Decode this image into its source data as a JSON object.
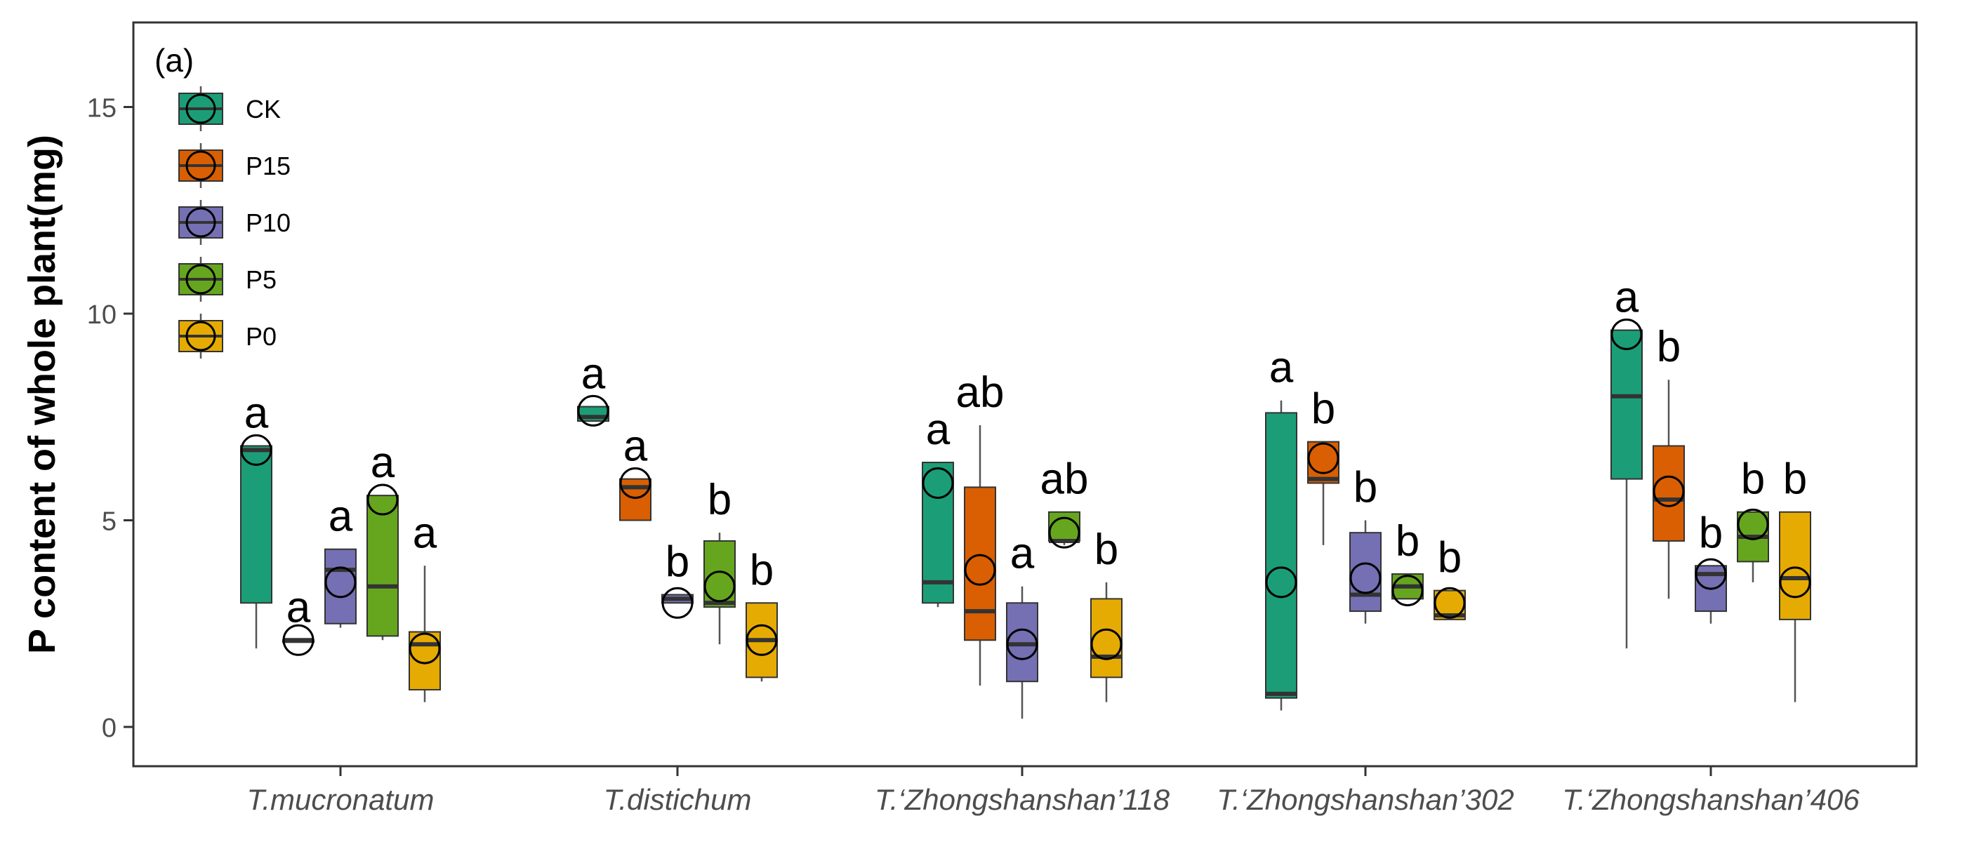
{
  "chart_data": {
    "type": "box",
    "panel_label": "(a)",
    "ylabel": "P content of whole plant(mg)",
    "xlabel": "",
    "ylim": [
      -0.9,
      17.0
    ],
    "yticks": [
      0,
      5,
      10,
      15
    ],
    "grid": false,
    "legend_position": "top-left",
    "categories": [
      "T.mucronatum",
      "T.distichum",
      "T.‘Zhongshanshan’118",
      "T.‘Zhongshanshan’302",
      "T.‘Zhongshanshan’406"
    ],
    "series": [
      {
        "name": "CK",
        "color": "#1b9e77",
        "boxes": [
          {
            "lower_whisker": 1.9,
            "q1": 3.0,
            "median": 6.7,
            "q3": 6.8,
            "upper_whisker": 6.8,
            "mean": 6.7,
            "letter": "a"
          },
          {
            "lower_whisker": 7.4,
            "q1": 7.4,
            "median": 7.5,
            "q3": 7.75,
            "upper_whisker": 7.75,
            "mean": 7.65,
            "letter": "a"
          },
          {
            "lower_whisker": 2.9,
            "q1": 3.0,
            "median": 3.5,
            "q3": 6.4,
            "upper_whisker": 6.4,
            "mean": 5.9,
            "letter": "a"
          },
          {
            "lower_whisker": 0.4,
            "q1": 0.7,
            "median": 0.8,
            "q3": 7.6,
            "upper_whisker": 7.9,
            "mean": 3.5,
            "letter": "a"
          },
          {
            "lower_whisker": 1.9,
            "q1": 6.0,
            "median": 8.0,
            "q3": 9.6,
            "upper_whisker": 9.6,
            "mean": 9.5,
            "letter": "a"
          }
        ]
      },
      {
        "name": "P15",
        "color": "#d95f02",
        "boxes": [
          {
            "lower_whisker": 2.1,
            "q1": 2.1,
            "median": 2.1,
            "q3": 2.1,
            "upper_whisker": 2.1,
            "mean": 2.1,
            "letter": "a"
          },
          {
            "lower_whisker": 5.0,
            "q1": 5.0,
            "median": 5.8,
            "q3": 6.0,
            "upper_whisker": 6.0,
            "mean": 5.9,
            "letter": "a"
          },
          {
            "lower_whisker": 1.0,
            "q1": 2.1,
            "median": 2.8,
            "q3": 5.8,
            "upper_whisker": 7.3,
            "mean": 3.8,
            "letter": "ab"
          },
          {
            "lower_whisker": 4.4,
            "q1": 5.9,
            "median": 6.0,
            "q3": 6.9,
            "upper_whisker": 6.9,
            "mean": 6.5,
            "letter": "b"
          },
          {
            "lower_whisker": 3.1,
            "q1": 4.5,
            "median": 5.5,
            "q3": 6.8,
            "upper_whisker": 8.4,
            "mean": 5.7,
            "letter": "b"
          }
        ]
      },
      {
        "name": "P10",
        "color": "#7570b3",
        "boxes": [
          {
            "lower_whisker": 2.4,
            "q1": 2.5,
            "median": 3.8,
            "q3": 4.3,
            "upper_whisker": 4.3,
            "mean": 3.5,
            "letter": "a"
          },
          {
            "lower_whisker": 3.0,
            "q1": 3.0,
            "median": 3.1,
            "q3": 3.2,
            "upper_whisker": 3.2,
            "mean": 3.0,
            "letter": "b"
          },
          {
            "lower_whisker": 0.2,
            "q1": 1.1,
            "median": 2.0,
            "q3": 3.0,
            "upper_whisker": 3.4,
            "mean": 2.0,
            "letter": "a"
          },
          {
            "lower_whisker": 2.5,
            "q1": 2.8,
            "median": 3.2,
            "q3": 4.7,
            "upper_whisker": 5.0,
            "mean": 3.6,
            "letter": "b"
          },
          {
            "lower_whisker": 2.5,
            "q1": 2.8,
            "median": 3.7,
            "q3": 3.9,
            "upper_whisker": 3.9,
            "mean": 3.7,
            "letter": "b"
          }
        ]
      },
      {
        "name": "P5",
        "color": "#66a61e",
        "boxes": [
          {
            "lower_whisker": 2.1,
            "q1": 2.2,
            "median": 3.4,
            "q3": 5.6,
            "upper_whisker": 5.6,
            "mean": 5.5,
            "letter": "a"
          },
          {
            "lower_whisker": 2.0,
            "q1": 2.9,
            "median": 3.0,
            "q3": 4.5,
            "upper_whisker": 4.7,
            "mean": 3.4,
            "letter": "b"
          },
          {
            "lower_whisker": 4.4,
            "q1": 4.5,
            "median": 4.5,
            "q3": 5.2,
            "upper_whisker": 5.2,
            "mean": 4.7,
            "letter": "ab"
          },
          {
            "lower_whisker": 3.1,
            "q1": 3.1,
            "median": 3.4,
            "q3": 3.7,
            "upper_whisker": 3.7,
            "mean": 3.3,
            "letter": "b"
          },
          {
            "lower_whisker": 3.5,
            "q1": 4.0,
            "median": 4.6,
            "q3": 5.2,
            "upper_whisker": 5.2,
            "mean": 4.9,
            "letter": "b"
          }
        ]
      },
      {
        "name": "P0",
        "color": "#e6ab02",
        "boxes": [
          {
            "lower_whisker": 0.6,
            "q1": 0.9,
            "median": 2.0,
            "q3": 2.3,
            "upper_whisker": 3.9,
            "mean": 1.9,
            "letter": "a"
          },
          {
            "lower_whisker": 1.1,
            "q1": 1.2,
            "median": 2.1,
            "q3": 3.0,
            "upper_whisker": 3.0,
            "mean": 2.1,
            "letter": "b"
          },
          {
            "lower_whisker": 0.6,
            "q1": 1.2,
            "median": 1.7,
            "q3": 3.1,
            "upper_whisker": 3.5,
            "mean": 2.0,
            "letter": "b"
          },
          {
            "lower_whisker": 2.6,
            "q1": 2.6,
            "median": 2.7,
            "q3": 3.3,
            "upper_whisker": 3.3,
            "mean": 3.0,
            "letter": "b"
          },
          {
            "lower_whisker": 0.6,
            "q1": 2.6,
            "median": 3.6,
            "q3": 5.2,
            "upper_whisker": 5.2,
            "mean": 3.5,
            "letter": "b"
          }
        ]
      }
    ]
  }
}
